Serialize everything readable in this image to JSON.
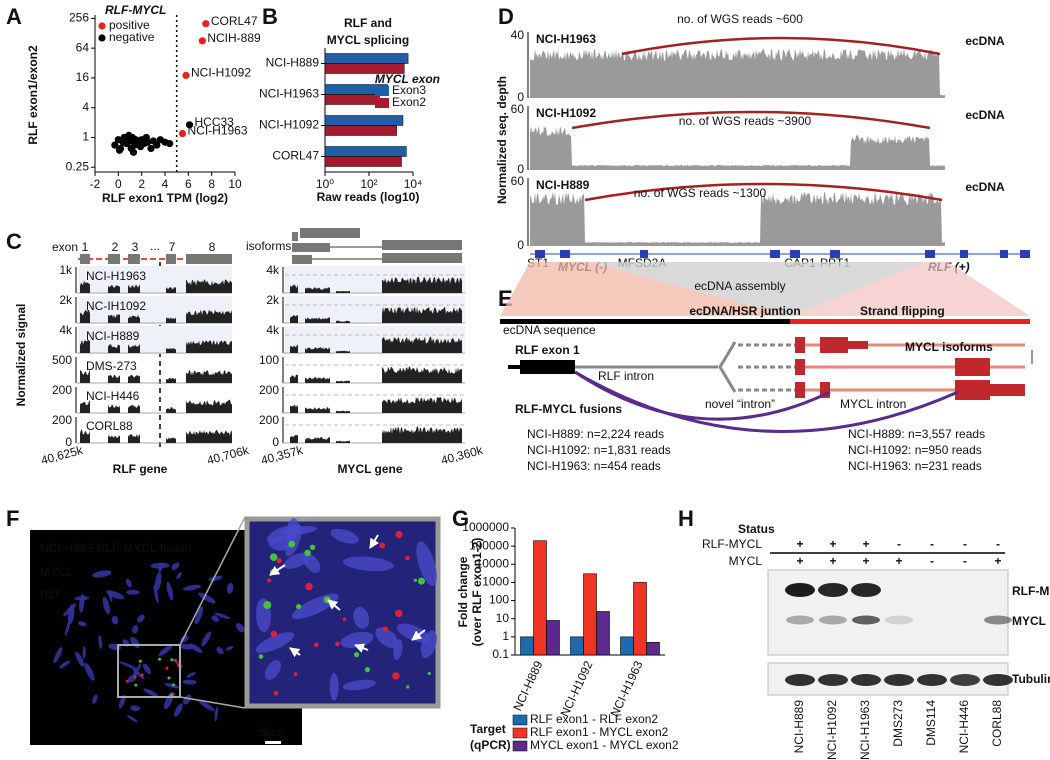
{
  "panel_labels": [
    "A",
    "B",
    "C",
    "D",
    "E",
    "F",
    "G",
    "H"
  ],
  "chart_data": [
    {
      "type": "scatter",
      "legend_title": "RLF-MYCL",
      "x_label": "RLF exon1 TPM (log2)",
      "y_label": "RLF exon1/exon2",
      "xlim": [
        -2,
        10
      ],
      "xticks": [
        -2,
        0,
        2,
        4,
        6,
        8,
        10
      ],
      "ylim": [
        0.2,
        300
      ],
      "yticks": [
        0.25,
        1,
        4,
        16,
        64,
        256
      ],
      "log_y": true,
      "threshold_x": 5,
      "series": [
        {
          "name": "positive",
          "color": "#e8221c",
          "x": [
            7.5,
            7.2,
            5.8,
            5.5
          ],
          "values": [
            200,
            90,
            18,
            1.2
          ],
          "labels": [
            "CORL47",
            "NCIH-889",
            "NCI-H1092",
            "NCI-H1963"
          ]
        },
        {
          "name": "negative",
          "color": "#000000",
          "x": [
            6.1,
            -0.3,
            0,
            0.2,
            0.4,
            0.5,
            0.7,
            0.8,
            1,
            1.1,
            1.2,
            1.4,
            1.5,
            1.7,
            1.9,
            2,
            2.2,
            2.5,
            2.8,
            3,
            3.3,
            3.6,
            4,
            4.4,
            0.9,
            1.3,
            0.1,
            2.4
          ],
          "values": [
            1.8,
            0.7,
            0.9,
            0.6,
            0.8,
            1,
            0.75,
            0.9,
            0.85,
            0.6,
            1,
            0.7,
            0.9,
            0.8,
            0.65,
            0.9,
            0.75,
            0.8,
            0.6,
            0.85,
            0.7,
            0.9,
            0.8,
            0.75,
            1.1,
            0.5,
            0.55,
            1
          ],
          "labels": [
            "HCC33",
            null,
            null,
            null,
            null,
            null,
            null,
            null,
            null,
            null,
            null,
            null,
            null,
            null,
            null,
            null,
            null,
            null,
            null,
            null,
            null,
            null,
            null,
            null,
            null,
            null,
            null,
            null
          ]
        }
      ]
    },
    {
      "type": "hbar",
      "title": [
        "RLF and",
        "MYCL splicing"
      ],
      "legend_title": "MYCL exon",
      "x_label": "Raw reads (log10)",
      "categories": [
        "NCI-H889",
        "NCI-H1963",
        "NCI-H1092",
        "CORL47"
      ],
      "series": [
        {
          "name": "Exon3",
          "color": "#1f5fa8",
          "values": [
            6000,
            700,
            3500,
            5000
          ]
        },
        {
          "name": "Exon2",
          "color": "#a6192e",
          "values": [
            4000,
            300,
            1800,
            3000
          ]
        }
      ],
      "xlim": [
        1,
        10000
      ],
      "log_x": true,
      "xticks": [
        {
          "value": 1,
          "label": "10⁰"
        },
        {
          "value": 100,
          "label": "10²"
        },
        {
          "value": 10000,
          "label": "10⁴"
        }
      ]
    },
    {
      "type": "bar",
      "y_label": [
        "Fold change",
        "(over RLF exon1-2)"
      ],
      "legend_title": [
        "Target",
        "(qPCR)"
      ],
      "categories": [
        "NCI-H889",
        "NCI-H1092",
        "NCI-H1963"
      ],
      "series": [
        {
          "name": "RLF exon1 - RLF exon2",
          "color": "#1a6bb0",
          "values": [
            1,
            1,
            1
          ]
        },
        {
          "name": "RLF exon1 - MYCL exon2",
          "color": "#ee3524",
          "values": [
            200000,
            3000,
            1000
          ]
        },
        {
          "name": "MYCL exon1 - MYCL exon2",
          "color": "#5b2a8c",
          "values": [
            8,
            25,
            0.5
          ]
        }
      ],
      "ylim": [
        0.1,
        1000000
      ],
      "log_y": true,
      "yticks": [
        0.1,
        1,
        10,
        100,
        1000,
        10000,
        100000,
        1000000
      ]
    }
  ],
  "panel_c": {
    "exon_label": "exon",
    "exons": [
      "1",
      "2",
      "3",
      "7",
      "8"
    ],
    "ellipsis": "...",
    "isoforms_label": "isoforms",
    "y_label": "Normalized signal",
    "tracks": [
      {
        "name": "NCI-H1963",
        "name_color": "#c0392b",
        "left_max": "1k",
        "right_max": "4k"
      },
      {
        "name": "NC-IH1092",
        "name_color": "#c0392b",
        "left_max": "2k",
        "right_max": "2k"
      },
      {
        "name": "NCI-H889",
        "name_color": "#c0392b",
        "left_max": "4k",
        "right_max": "4k"
      },
      {
        "name": "DMS-273",
        "name_color": "#222222",
        "left_max": "500",
        "right_max": "100"
      },
      {
        "name": "NCI-H446",
        "name_color": "#222222",
        "left_max": "200",
        "right_max": "200"
      },
      {
        "name": "CORL88",
        "name_color": "#222222",
        "left_max": "200",
        "right_max": "200"
      }
    ],
    "zero_label": "0",
    "left_ticks": [
      "40,625k",
      "40,706k"
    ],
    "right_ticks": [
      "40,357k",
      "40,360k"
    ],
    "left_gene": "RLF gene",
    "right_gene": "MYCL gene"
  },
  "panel_d": {
    "y_label": "Normalized seq. depth",
    "tracks": [
      {
        "name": "NCI-H1963",
        "ymax": "40",
        "reads": "no. of WGS reads ~600",
        "tag": "ecDNA"
      },
      {
        "name": "NCI-H1092",
        "ymax": "60",
        "reads": "no. of WGS reads ~3900",
        "tag": "ecDNA"
      },
      {
        "name": "NCI-H889",
        "ymax": "60",
        "reads": "no. of WGS reads ~1300",
        "tag": "ecDNA"
      }
    ],
    "zero_label": "0",
    "genes": [
      "ST1",
      "MFSD2A",
      "CAP1",
      "PPT1"
    ],
    "mycl_label": "MYCL (-)",
    "rlf_label": "RLF (+)"
  },
  "panel_e": {
    "assembly_label": "ecDNA assembly",
    "sequence_label": "ecDNA sequence",
    "junction_label": "ecDNA/HSR juntion",
    "flip_label": "Strand flipping",
    "rlf_exon": "RLF exon 1",
    "rlf_intron": "RLF intron",
    "novel_intron": "novel “intron”",
    "mycl_intron": "MYCL intron",
    "mycl_isoforms": "MYCL isoforms",
    "fusions_label": "RLF-MYCL fusions",
    "left_reads": [
      "NCI-H889: n=2,224 reads",
      "NCI-H1092: n=1,831 reads",
      "NCI-H1963: n=454 reads"
    ],
    "right_reads": [
      "NCI-H889: n=3,557 reads",
      "NCI-H1092: n=950 reads",
      "NCI-H1963: n=231 reads"
    ]
  },
  "panel_f": {
    "title": "NCI-H889 RLF-MYCL fusion",
    "channels": [
      {
        "name": "MYCL",
        "color": "#3ec43e"
      },
      {
        "name": "RLF",
        "color": "#e0203a"
      }
    ],
    "scale_bar": "5um"
  },
  "panel_h": {
    "status_label": "Status",
    "rows": [
      {
        "name": "RLF-MYCL",
        "status": [
          "+",
          "+",
          "+",
          "-",
          "-",
          "-",
          "-"
        ]
      },
      {
        "name": "MYCL",
        "status": [
          "+",
          "+",
          "+",
          "+",
          "-",
          "-",
          "+"
        ]
      }
    ],
    "bands": [
      "RLF-MYCL",
      "MYCL",
      "Tubulin"
    ],
    "lanes": [
      "NCI-H889",
      "NCI-H1092",
      "NCI-H1963",
      "DMS273",
      "DMS114",
      "NCI-H446",
      "CORL88"
    ]
  }
}
